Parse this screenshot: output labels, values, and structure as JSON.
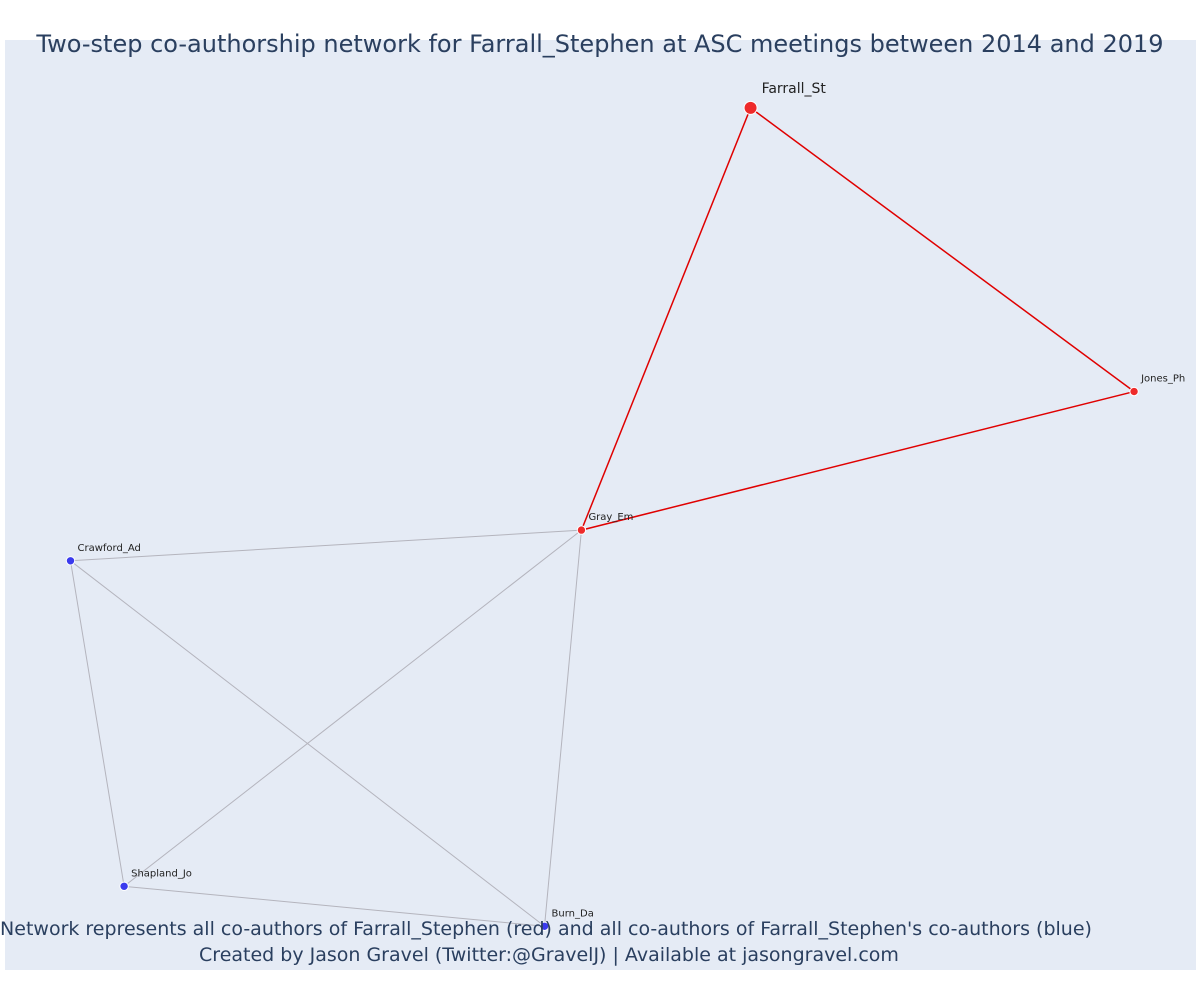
{
  "title": "Two-step co-authorship network for Farrall_Stephen at ASC meetings between 2014 and 2019",
  "captions": {
    "line1": "Network represents all co-authors of Farrall_Stephen (red) and all co-authors of Farrall_Stephen's co-authors (blue)",
    "line2": "Created by Jason Gravel (Twitter:@GravelJ) | Available at jasongravel.com"
  },
  "colors": {
    "background": "#e5ebf5",
    "red_node": "#ee2a2a",
    "blue_node": "#3a3aee",
    "red_edge": "#e00000",
    "grey_edge": "#b4b4bd",
    "title_text": "#2a3f5f"
  },
  "chart_data": {
    "type": "network",
    "nodes": [
      {
        "id": "Farrall_St",
        "label": "Farrall_St",
        "group": "red",
        "role": "focal",
        "x": 0.626,
        "y": 0.927
      },
      {
        "id": "Jones_Ph",
        "label": "Jones_Ph",
        "group": "red",
        "role": "coauthor",
        "x": 0.948,
        "y": 0.622
      },
      {
        "id": "Gray_Em",
        "label": "Gray_Em",
        "group": "red",
        "role": "coauthor",
        "x": 0.484,
        "y": 0.473
      },
      {
        "id": "Crawford_Ad",
        "label": "Crawford_Ad",
        "group": "blue",
        "role": "second-step",
        "x": 0.055,
        "y": 0.44
      },
      {
        "id": "Shapland_Jo",
        "label": "Shapland_Jo",
        "group": "blue",
        "role": "second-step",
        "x": 0.1,
        "y": 0.09
      },
      {
        "id": "Burn_Da",
        "label": "Burn_Da",
        "group": "blue",
        "role": "second-step",
        "x": 0.453,
        "y": 0.047
      }
    ],
    "edges": [
      {
        "source": "Farrall_St",
        "target": "Gray_Em",
        "group": "red"
      },
      {
        "source": "Farrall_St",
        "target": "Jones_Ph",
        "group": "red"
      },
      {
        "source": "Jones_Ph",
        "target": "Gray_Em",
        "group": "red"
      },
      {
        "source": "Gray_Em",
        "target": "Crawford_Ad",
        "group": "grey"
      },
      {
        "source": "Gray_Em",
        "target": "Shapland_Jo",
        "group": "grey"
      },
      {
        "source": "Gray_Em",
        "target": "Burn_Da",
        "group": "grey"
      },
      {
        "source": "Crawford_Ad",
        "target": "Shapland_Jo",
        "group": "grey"
      },
      {
        "source": "Crawford_Ad",
        "target": "Burn_Da",
        "group": "grey"
      },
      {
        "source": "Shapland_Jo",
        "target": "Burn_Da",
        "group": "grey"
      }
    ],
    "axes_visible": false,
    "grid": false,
    "legend": "none"
  }
}
